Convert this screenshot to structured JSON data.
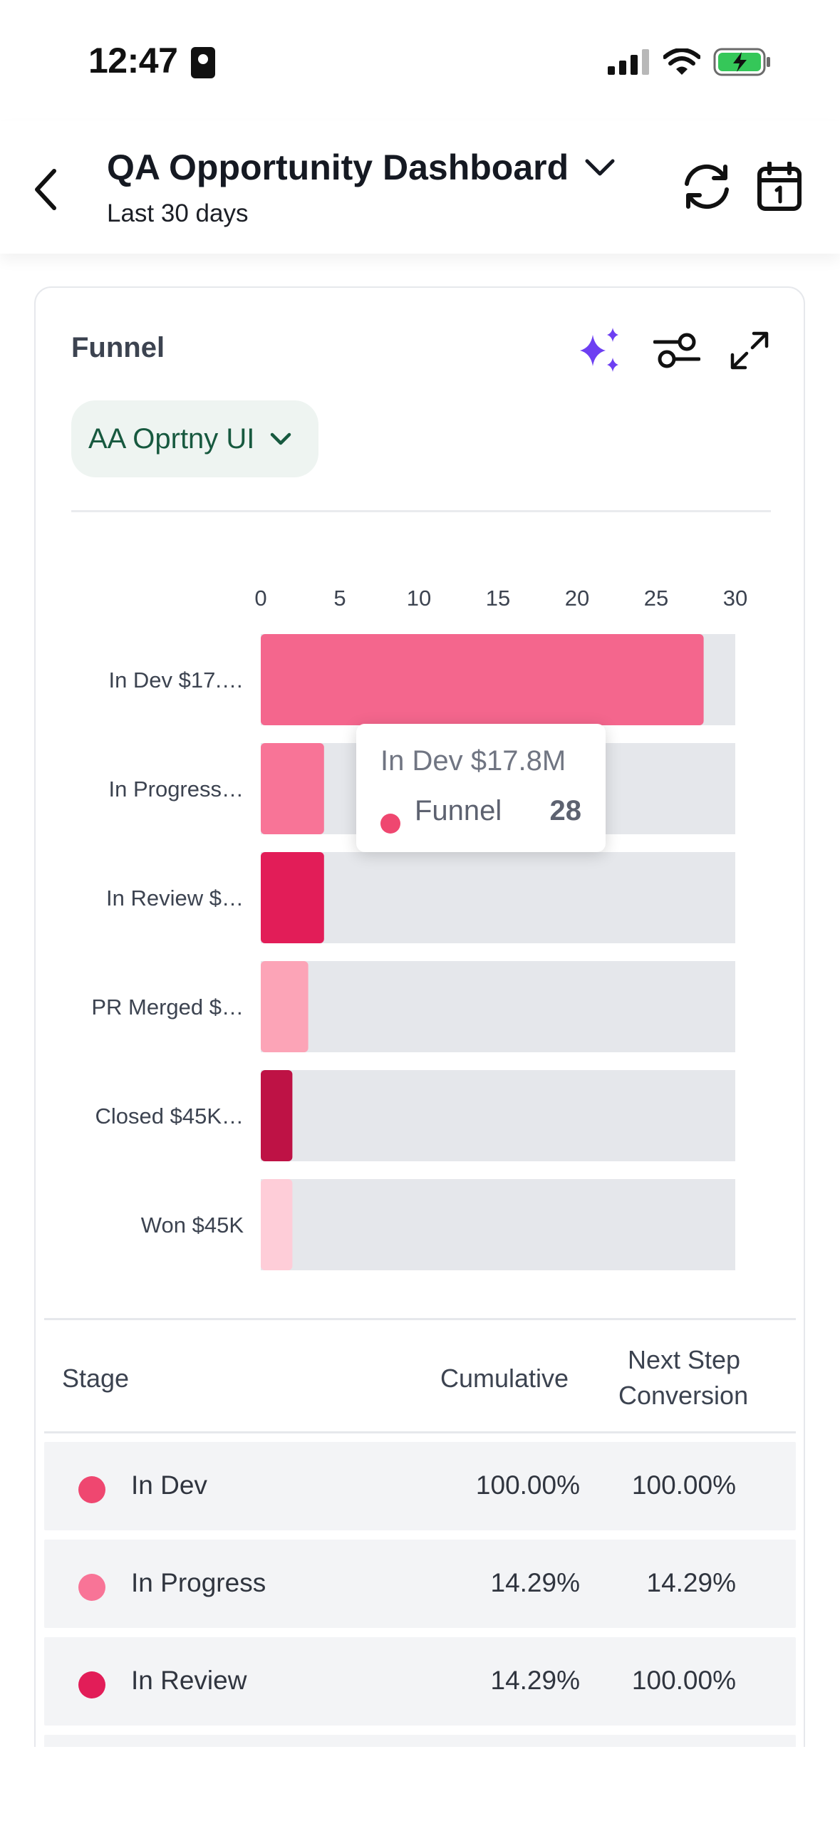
{
  "status_bar": {
    "time": "12:47"
  },
  "header": {
    "title": "QA Opportunity Dashboard",
    "subtitle": "Last 30 days"
  },
  "card": {
    "title": "Funnel",
    "selector_label": "AA Oprtny UI"
  },
  "chart_data": {
    "type": "bar",
    "orientation": "horizontal",
    "categories": [
      "In Dev $17.…",
      "In Progress…",
      "In Review $…",
      "PR Merged $…",
      "Closed $45K…",
      "Won $45K"
    ],
    "series": [
      {
        "name": "Funnel",
        "values": [
          28,
          4,
          4,
          3,
          2,
          2
        ]
      }
    ],
    "xlim": [
      0,
      30
    ],
    "x_ticks": [
      "0",
      "5",
      "10",
      "15",
      "20",
      "25",
      "30"
    ],
    "colors": [
      "#f4668d",
      "#f87497",
      "#e21d58",
      "#fca4b7",
      "#be1245",
      "#fecdd8"
    ],
    "track_color": "#e5e7eb",
    "tooltip": {
      "title": "In Dev $17.8M",
      "series": "Funnel",
      "value": "28"
    }
  },
  "table": {
    "headers": {
      "stage": "Stage",
      "cumulative": "Cumulative",
      "next_step_1": "Next Step",
      "next_step_2": "Conversion"
    },
    "rows": [
      {
        "stage": "In Dev",
        "cumulative": "100.00%",
        "next": "100.00%",
        "color": "#ef4770"
      },
      {
        "stage": "In Progress",
        "cumulative": "14.29%",
        "next": "14.29%",
        "color": "#f87497"
      },
      {
        "stage": "In Review",
        "cumulative": "14.29%",
        "next": "100.00%",
        "color": "#e21d58"
      }
    ]
  },
  "icons": {
    "back": "chevron-left-icon",
    "title_dropdown": "chevron-down-icon",
    "refresh": "refresh-icon",
    "calendar": "calendar-icon",
    "ai": "sparkles-icon",
    "filter": "sliders-icon",
    "expand": "expand-icon",
    "accent": "#6d3ff2"
  }
}
